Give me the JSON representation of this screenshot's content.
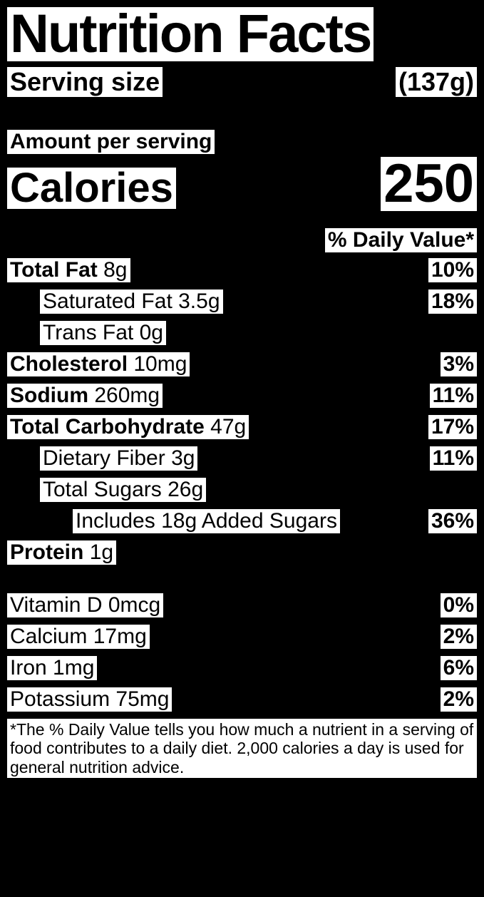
{
  "title": "Nutrition Facts",
  "serving": {
    "label": "Serving size",
    "amount": "(137g)"
  },
  "amount_per_serving_label": "Amount per serving",
  "calories": {
    "label": "Calories",
    "value": "250"
  },
  "dv_header": "% Daily Value*",
  "nutrients": {
    "total_fat": {
      "name": "Total Fat",
      "amount": "8g",
      "pct": "10%"
    },
    "sat_fat": {
      "name": "Saturated Fat",
      "amount": "3.5g",
      "pct": "18%"
    },
    "trans_fat": {
      "name": "Trans Fat",
      "amount": "0g"
    },
    "cholesterol": {
      "name": "Cholesterol",
      "amount": "10mg",
      "pct": "3%"
    },
    "sodium": {
      "name": "Sodium",
      "amount": "260mg",
      "pct": "11%"
    },
    "carb": {
      "name": "Total Carbohydrate",
      "amount": "47g",
      "pct": "17%"
    },
    "fiber": {
      "name": "Dietary Fiber",
      "amount": "3g",
      "pct": "11%"
    },
    "sugars": {
      "name": "Total Sugars",
      "amount": "26g"
    },
    "added_sugars": {
      "text": "Includes 18g Added Sugars",
      "pct": "36%"
    },
    "protein": {
      "name": "Protein",
      "amount": "1g"
    },
    "vit_d": {
      "name": "Vitamin D",
      "amount": "0mcg",
      "pct": "0%"
    },
    "calcium": {
      "name": "Calcium",
      "amount": "17mg",
      "pct": "2%"
    },
    "iron": {
      "name": "Iron",
      "amount": "1mg",
      "pct": "6%"
    },
    "potassium": {
      "name": "Potassium",
      "amount": "75mg",
      "pct": "2%"
    }
  },
  "footnote": "*The % Daily Value tells you how much a nutrient in a serving of food contributes to a daily diet. 2,000 calories a day is used for general nutrition advice.",
  "colors": {
    "bg": "#000000",
    "fg": "#ffffff",
    "text": "#000000"
  },
  "type": "nutrition-facts-label"
}
